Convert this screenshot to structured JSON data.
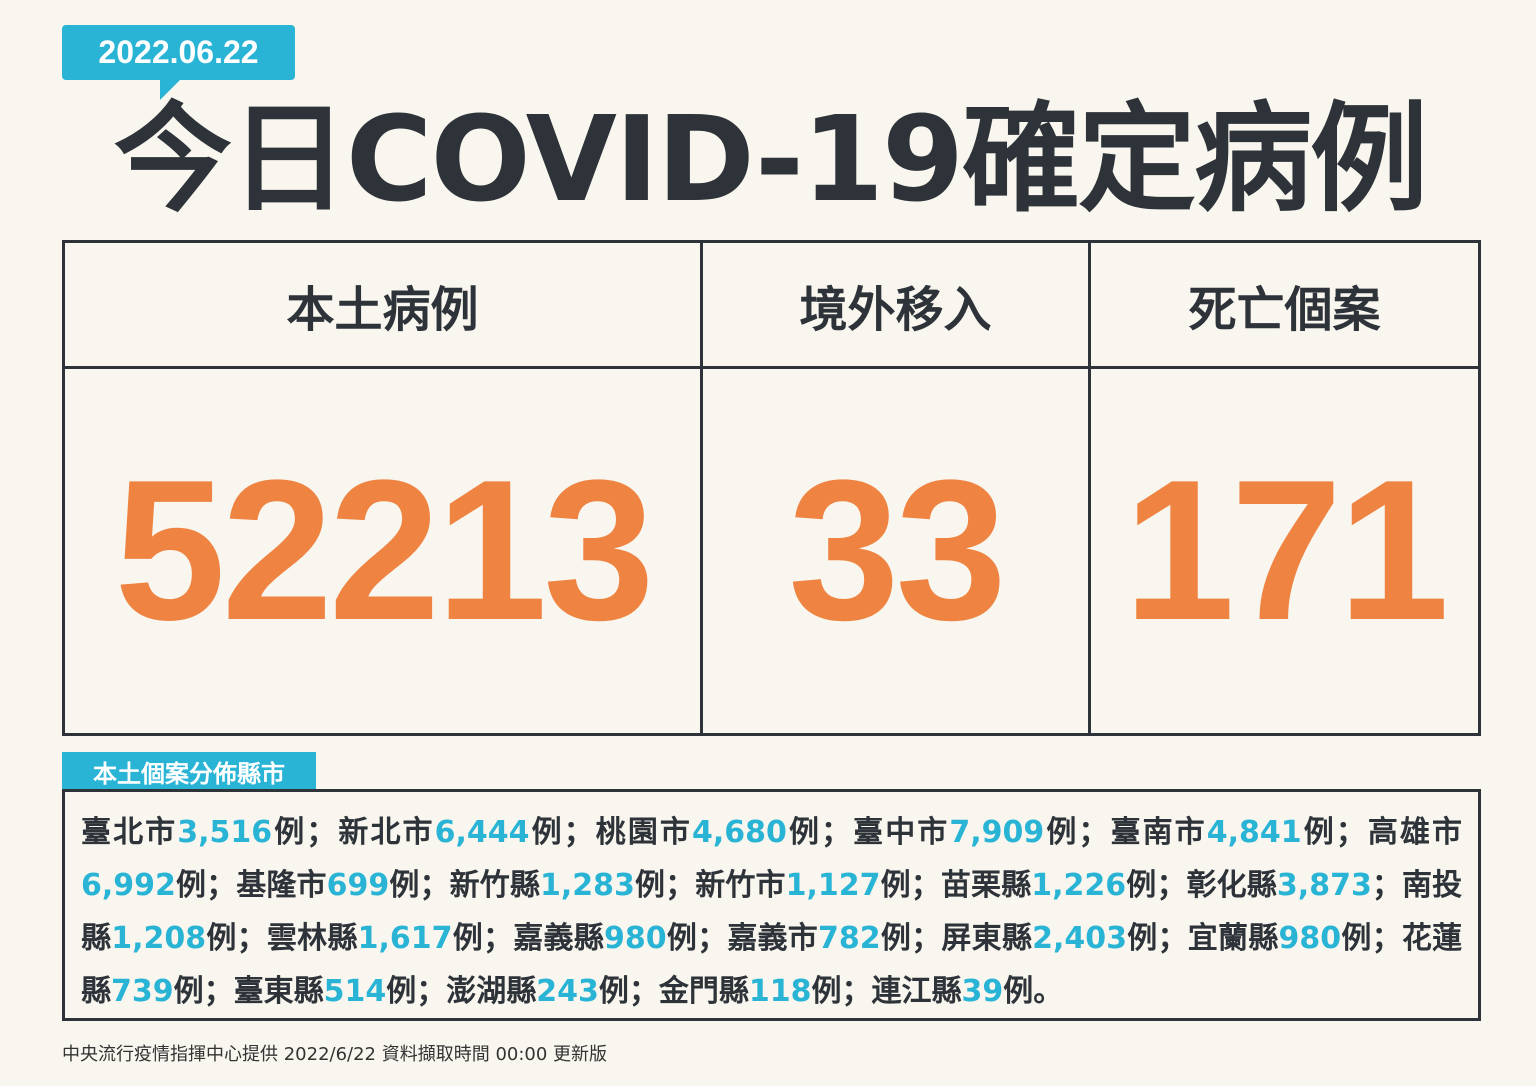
{
  "date_badge": "2022.06.22",
  "title": "今日COVID-19確定病例",
  "table": {
    "headers": [
      "本土病例",
      "境外移入",
      "死亡個案"
    ],
    "values": [
      "52213",
      "33",
      "171"
    ]
  },
  "distribution": {
    "label": "本土個案分佈縣市",
    "items": [
      {
        "name": "臺北市",
        "count": "3,516",
        "unit": "例",
        "sep": "；"
      },
      {
        "name": "新北市",
        "count": "6,444",
        "unit": "例",
        "sep": "；"
      },
      {
        "name": "桃園市",
        "count": "4,680",
        "unit": "例",
        "sep": "；"
      },
      {
        "name": "臺中市",
        "count": "7,909",
        "unit": "例",
        "sep": "；"
      },
      {
        "name": "臺南市",
        "count": "4,841",
        "unit": "例",
        "sep": "；"
      },
      {
        "name": "高雄市",
        "count": "6,992",
        "unit": "例",
        "sep": "；"
      },
      {
        "name": "基隆市",
        "count": "699",
        "unit": "例",
        "sep": "；"
      },
      {
        "name": "新竹縣",
        "count": "1,283",
        "unit": "例",
        "sep": "；"
      },
      {
        "name": "新竹市",
        "count": "1,127",
        "unit": "例",
        "sep": "；"
      },
      {
        "name": "苗栗縣",
        "count": "1,226",
        "unit": "例",
        "sep": "；"
      },
      {
        "name": "彰化縣",
        "count": "3,873",
        "unit": "",
        "sep": "；"
      },
      {
        "name": "南投縣",
        "count": "1,208",
        "unit": "例",
        "sep": "；"
      },
      {
        "name": "雲林縣",
        "count": "1,617",
        "unit": "例",
        "sep": "；"
      },
      {
        "name": "嘉義縣",
        "count": "980",
        "unit": "例",
        "sep": "；"
      },
      {
        "name": "嘉義市",
        "count": "782",
        "unit": "例",
        "sep": "；"
      },
      {
        "name": "屏東縣",
        "count": "2,403",
        "unit": "例",
        "sep": "；"
      },
      {
        "name": "宜蘭縣",
        "count": "980",
        "unit": "例",
        "sep": "；"
      },
      {
        "name": "花蓮縣",
        "count": "739",
        "unit": "例",
        "sep": "；"
      },
      {
        "name": "臺東縣",
        "count": "514",
        "unit": "例",
        "sep": "；"
      },
      {
        "name": "澎湖縣",
        "count": "243",
        "unit": "例",
        "sep": "；"
      },
      {
        "name": "金門縣",
        "count": "118",
        "unit": "例",
        "sep": "；"
      },
      {
        "name": "連江縣",
        "count": "39",
        "unit": "例",
        "sep": "。"
      }
    ]
  },
  "footer": "中央流行疫情指揮中心提供  2022/6/22 資料擷取時間 00:00 更新版",
  "colors": {
    "accent": "#29b4d6",
    "number": "#ef8442",
    "text": "#2d3339",
    "background": "#f8f6ee"
  }
}
